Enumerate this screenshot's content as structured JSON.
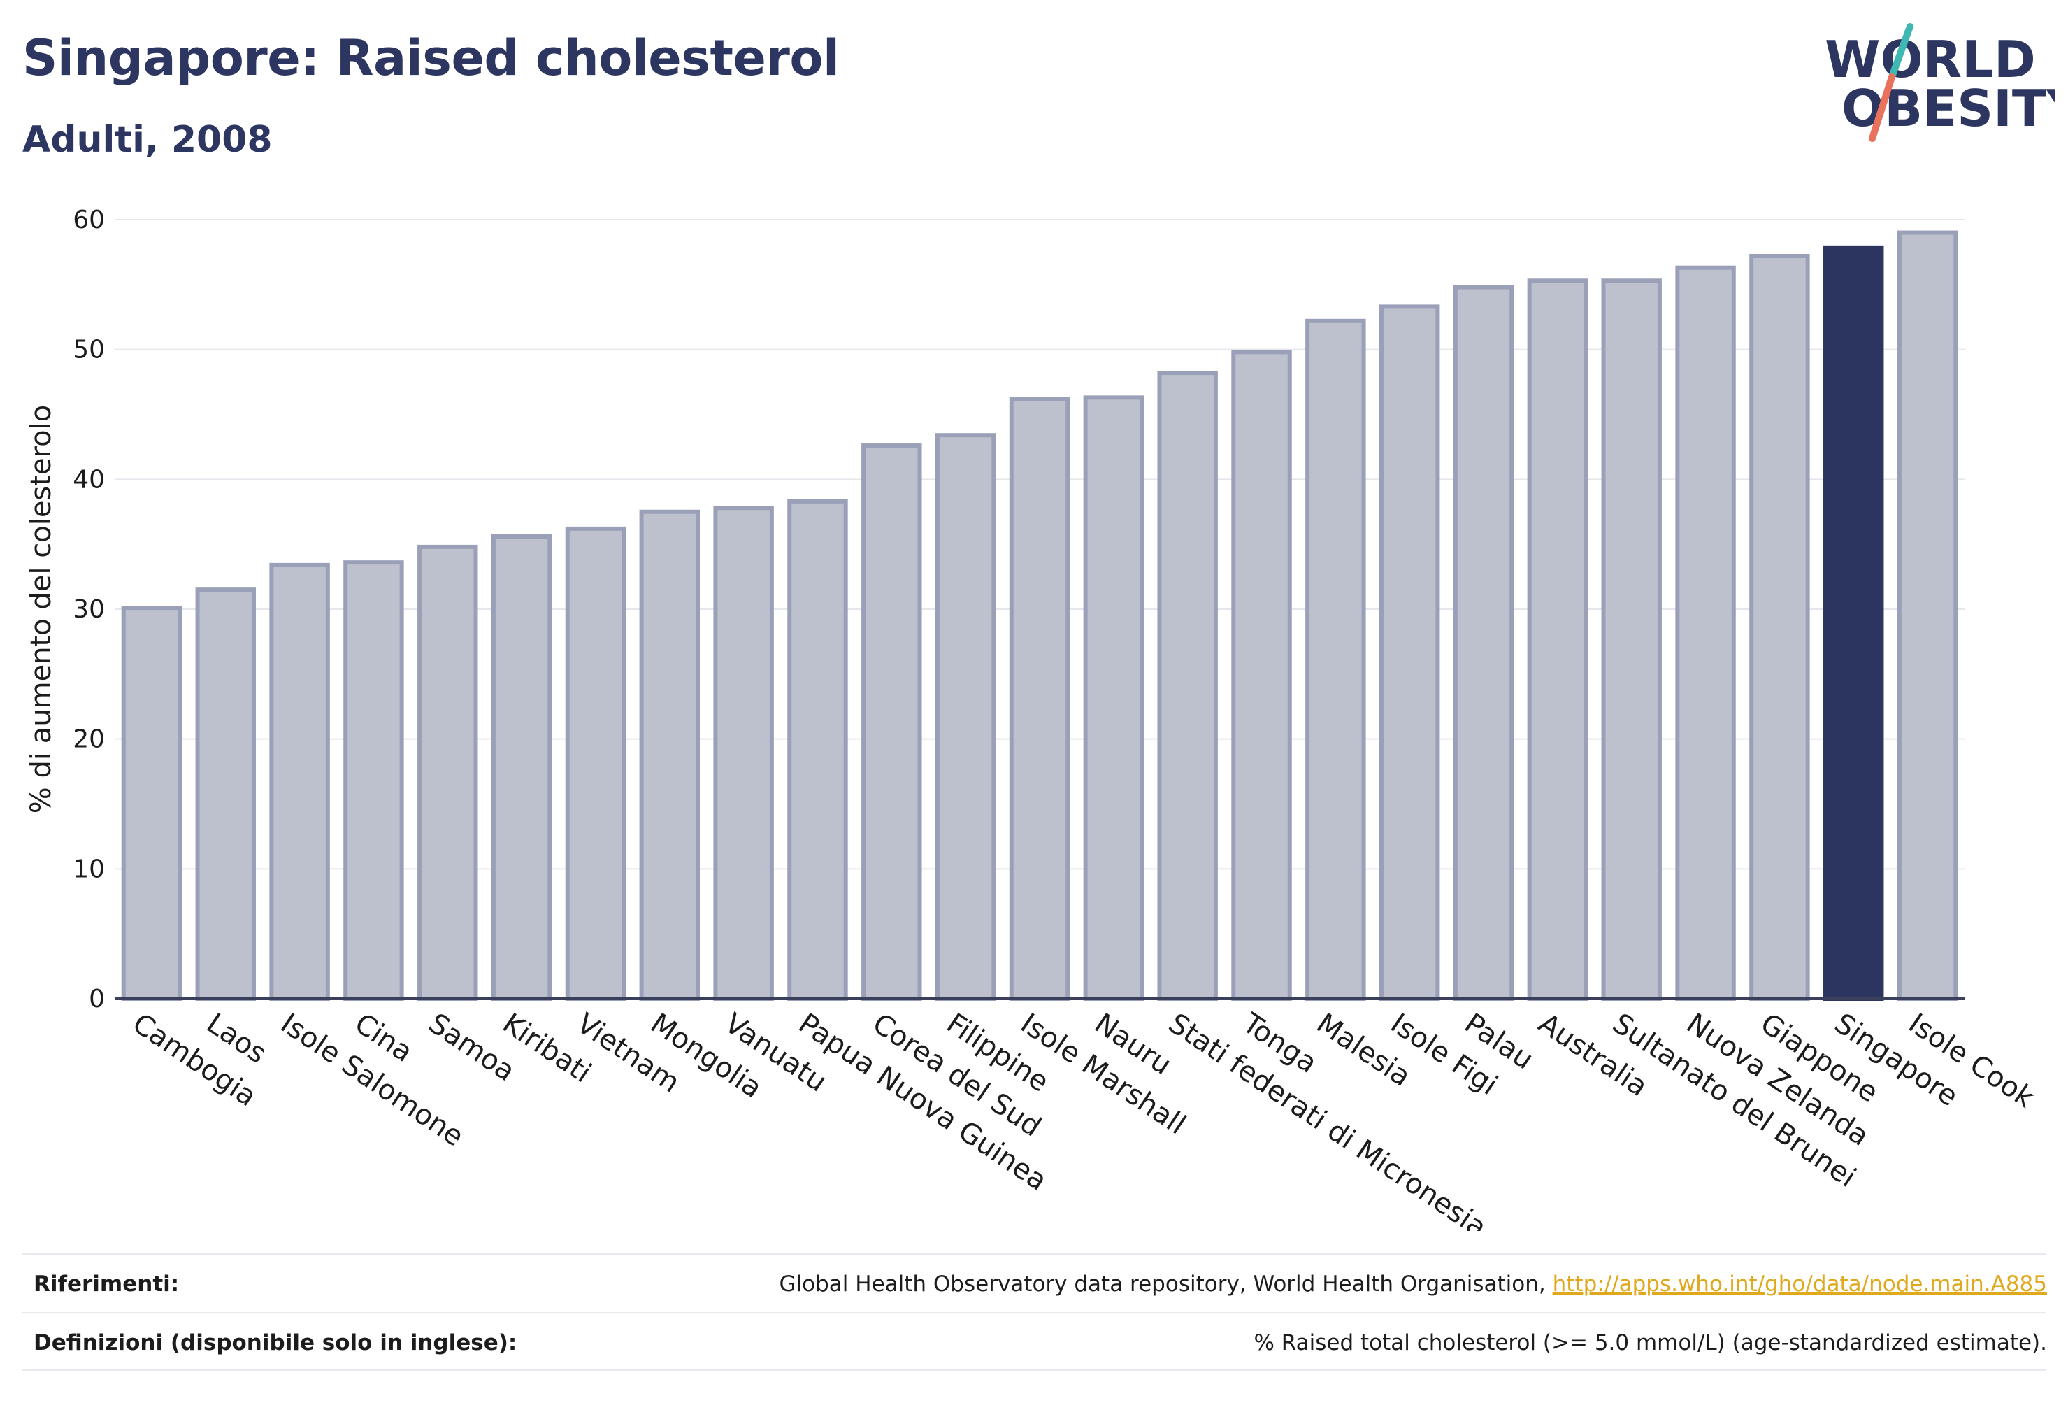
{
  "header": {
    "title": "Singapore: Raised cholesterol",
    "subtitle": "Adulti, 2008"
  },
  "logo": {
    "line1": "WORLD",
    "line2": "OBESITY",
    "slash_colors": [
      "#3fb8b4",
      "#e8725c"
    ],
    "text_color": "#2c3660"
  },
  "colors": {
    "bar_fill": "#bdc1ce",
    "bar_stroke": "#9aa0b8",
    "highlight": "#2b3560",
    "axis": "#3a3f5c",
    "grid": "#e6e7ec"
  },
  "chart_data": {
    "type": "bar",
    "ylabel": "% di aumento del colesterolo",
    "ylim": [
      0,
      60
    ],
    "yticks": [
      0,
      10,
      20,
      30,
      40,
      50,
      60
    ],
    "grid": true,
    "highlight_category": "Singapore",
    "categories": [
      "Cambogia",
      "Laos",
      "Isole Salomone",
      "Cina",
      "Samoa",
      "Kiribati",
      "Vietnam",
      "Mongolia",
      "Vanuatu",
      "Papua Nuova Guinea",
      "Corea del Sud",
      "Filippine",
      "Isole Marshall",
      "Nauru",
      "Stati federati di Micronesia",
      "Tonga",
      "Malesia",
      "Isole Figi",
      "Palau",
      "Australia",
      "Sultanato del Brunei",
      "Nuova Zelanda",
      "Giappone",
      "Singapore",
      "Isole Cook"
    ],
    "values": [
      30.1,
      31.5,
      33.4,
      33.6,
      34.8,
      35.6,
      36.2,
      37.5,
      37.8,
      38.3,
      42.6,
      43.4,
      46.2,
      46.3,
      48.2,
      49.8,
      52.2,
      53.3,
      54.8,
      55.3,
      55.3,
      56.3,
      57.2,
      57.8,
      59.0
    ]
  },
  "footer": {
    "references_label": "Riferimenti:",
    "references_text": "Global Health Observatory data repository, World Health Organisation, ",
    "references_link": "http://apps.who.int/gho/data/node.main.A885",
    "definitions_label": "Definizioni (disponibile solo in inglese):",
    "definitions_text": "% Raised total cholesterol (>= 5.0 mmol/L) (age-standardized estimate)."
  }
}
